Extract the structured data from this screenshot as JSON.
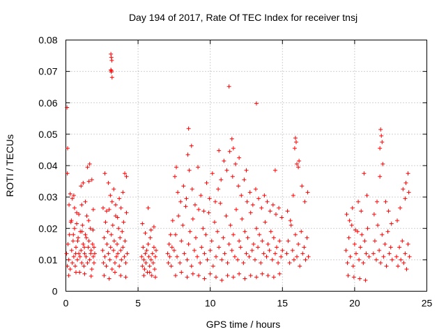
{
  "chart_data": {
    "type": "scatter",
    "title": "Day 194 of 2017, Rate Of TEC Index for receiver tnsj",
    "xlabel": "GPS time / hours",
    "ylabel": "ROTI / TECUs",
    "xlim": [
      0,
      25
    ],
    "ylim": [
      0,
      0.08
    ],
    "xticks": [
      0,
      5,
      10,
      15,
      20,
      25
    ],
    "xtick_labels": [
      "0",
      "5",
      "10",
      "15",
      "20",
      "25"
    ],
    "yticks": [
      0,
      0.01,
      0.02,
      0.03,
      0.04,
      0.05,
      0.06,
      0.07,
      0.08
    ],
    "ytick_labels": [
      "0",
      "0.01",
      "0.02",
      "0.03",
      "0.04",
      "0.05",
      "0.06",
      "0.07",
      "0.08"
    ],
    "grid": true,
    "marker": "+",
    "color": "#ff0000",
    "series": [
      {
        "name": "ROTI",
        "x": [
          0.05,
          0.1,
          0.15,
          0.2,
          0.25,
          0.3,
          0.35,
          0.4,
          0.45,
          0.5,
          0.55,
          0.6,
          0.65,
          0.7,
          0.75,
          0.8,
          0.85,
          0.9,
          0.95,
          1.0,
          1.05,
          1.1,
          1.15,
          1.2,
          1.25,
          1.3,
          1.35,
          1.4,
          1.45,
          1.5,
          1.55,
          1.6,
          1.65,
          1.7,
          1.75,
          1.8,
          1.85,
          1.9,
          1.95,
          2.0,
          0.08,
          0.12,
          0.22,
          0.3,
          0.38,
          0.45,
          0.52,
          0.6,
          0.68,
          0.75,
          0.82,
          0.9,
          0.98,
          1.05,
          1.12,
          1.2,
          1.28,
          1.35,
          1.42,
          1.5,
          1.58,
          1.65,
          1.72,
          1.8,
          1.88,
          1.95,
          0.1,
          0.55,
          1.1,
          1.6,
          1.9,
          0.2,
          0.7,
          1.3,
          1.75,
          2.55,
          2.6,
          2.65,
          2.7,
          2.75,
          2.8,
          2.85,
          2.9,
          2.95,
          3.0,
          3.05,
          3.1,
          3.15,
          3.2,
          3.25,
          3.3,
          3.35,
          3.4,
          3.45,
          3.5,
          3.55,
          3.6,
          3.65,
          3.7,
          3.75,
          3.8,
          3.85,
          3.9,
          3.95,
          4.0,
          4.05,
          4.1,
          4.15,
          4.2,
          4.25,
          2.58,
          2.7,
          2.82,
          2.95,
          3.08,
          3.2,
          3.32,
          3.45,
          3.58,
          3.7,
          3.82,
          3.95,
          4.08,
          4.2,
          2.65,
          3.0,
          3.4,
          3.8,
          4.15,
          3.12,
          3.15,
          3.18,
          3.12,
          3.15,
          3.2,
          3.15,
          5.25,
          5.3,
          5.35,
          5.4,
          5.45,
          5.5,
          5.55,
          5.6,
          5.65,
          5.7,
          5.75,
          5.8,
          5.85,
          5.9,
          5.95,
          6.0,
          6.05,
          6.1,
          6.15,
          6.2,
          6.25,
          5.3,
          5.5,
          5.7,
          5.9,
          6.1,
          5.4,
          5.8,
          6.2,
          7.05,
          7.1,
          7.15,
          7.2,
          7.25,
          7.3,
          7.35,
          7.4,
          7.5,
          7.6,
          7.7,
          7.8,
          7.9,
          8.0,
          8.1,
          8.2,
          8.3,
          8.4,
          8.5,
          8.6,
          8.7,
          8.8,
          8.9,
          9.0,
          9.1,
          9.2,
          9.3,
          9.4,
          9.5,
          9.6,
          9.7,
          9.8,
          9.9,
          10.0,
          10.1,
          10.2,
          10.3,
          10.4,
          10.5,
          10.6,
          10.7,
          10.8,
          10.9,
          11.0,
          11.1,
          11.2,
          11.3,
          11.4,
          11.5,
          11.6,
          11.7,
          11.8,
          11.9,
          12.0,
          12.1,
          12.2,
          12.3,
          12.4,
          12.5,
          12.6,
          12.7,
          12.8,
          12.9,
          13.0,
          13.1,
          13.2,
          13.3,
          13.4,
          13.5,
          13.6,
          13.7,
          13.8,
          13.9,
          14.0,
          14.1,
          14.2,
          14.3,
          14.4,
          14.5,
          14.6,
          14.7,
          14.8,
          14.9,
          15.0,
          7.55,
          7.75,
          7.95,
          8.15,
          8.35,
          8.55,
          8.75,
          8.95,
          9.15,
          9.35,
          9.55,
          9.75,
          9.95,
          10.15,
          10.35,
          10.55,
          10.75,
          10.95,
          11.15,
          11.35,
          11.55,
          11.75,
          11.95,
          12.15,
          12.35,
          12.55,
          12.75,
          12.95,
          13.15,
          13.35,
          13.55,
          13.75,
          13.95,
          14.15,
          14.35,
          14.55,
          14.75,
          14.95,
          7.6,
          8.0,
          8.4,
          8.8,
          9.2,
          9.6,
          10.0,
          10.4,
          10.8,
          11.2,
          11.6,
          12.0,
          12.4,
          12.8,
          13.2,
          13.6,
          14.0,
          14.4,
          14.8,
          7.65,
          8.5,
          8.7,
          11.3,
          11.5,
          11.6,
          10.6,
          13.2,
          8.45,
          12.0,
          12.5,
          14.5,
          15.3,
          15.4,
          15.5,
          15.6,
          15.7,
          15.8,
          15.9,
          16.0,
          16.1,
          16.2,
          16.3,
          16.4,
          16.5,
          16.6,
          16.7,
          16.8,
          15.35,
          15.55,
          15.75,
          15.95,
          16.15,
          16.35,
          16.55,
          16.75,
          15.9,
          16.0,
          16.1,
          15.85,
          19.4,
          19.5,
          19.6,
          19.7,
          19.8,
          19.9,
          20.0,
          20.1,
          20.2,
          20.3,
          20.4,
          20.5,
          20.6,
          20.7,
          20.8,
          20.9,
          21.0,
          19.45,
          19.65,
          19.85,
          20.05,
          20.25,
          20.45,
          20.65,
          20.85,
          19.55,
          19.95,
          20.35,
          20.75,
          21.3,
          21.4,
          21.5,
          21.6,
          21.7,
          21.8,
          21.9,
          22.0,
          22.1,
          22.2,
          22.3,
          22.4,
          22.5,
          22.6,
          21.35,
          21.55,
          21.75,
          21.95,
          22.15,
          22.35,
          22.55,
          21.8,
          21.85,
          21.9,
          21.75,
          22.9,
          23.0,
          23.1,
          23.2,
          23.3,
          23.4,
          23.5,
          23.6,
          23.7,
          23.8,
          22.95,
          23.15,
          23.35,
          23.55,
          23.75,
          23.5,
          23.7
        ],
        "y": [
          0.012,
          0.008,
          0.015,
          0.01,
          0.018,
          0.007,
          0.022,
          0.013,
          0.009,
          0.016,
          0.011,
          0.02,
          0.008,
          0.014,
          0.025,
          0.01,
          0.017,
          0.012,
          0.006,
          0.019,
          0.013,
          0.009,
          0.021,
          0.015,
          0.008,
          0.012,
          0.018,
          0.011,
          0.024,
          0.009,
          0.014,
          0.016,
          0.01,
          0.02,
          0.013,
          0.007,
          0.015,
          0.011,
          0.009,
          0.012,
          0.0585,
          0.0455,
          0.0275,
          0.031,
          0.0225,
          0.0295,
          0.018,
          0.0265,
          0.012,
          0.0215,
          0.016,
          0.0245,
          0.011,
          0.0335,
          0.019,
          0.0345,
          0.014,
          0.0285,
          0.017,
          0.0395,
          0.0225,
          0.0405,
          0.012,
          0.0355,
          0.0195,
          0.014,
          0.0375,
          0.0305,
          0.0275,
          0.035,
          0.026,
          0.005,
          0.006,
          0.0055,
          0.0048,
          0.013,
          0.009,
          0.017,
          0.011,
          0.022,
          0.008,
          0.015,
          0.019,
          0.012,
          0.026,
          0.01,
          0.014,
          0.018,
          0.007,
          0.021,
          0.013,
          0.016,
          0.009,
          0.024,
          0.011,
          0.015,
          0.012,
          0.02,
          0.008,
          0.017,
          0.013,
          0.01,
          0.019,
          0.014,
          0.022,
          0.011,
          0.016,
          0.009,
          0.025,
          0.012,
          0.0265,
          0.0375,
          0.0255,
          0.0345,
          0.0305,
          0.0285,
          0.0325,
          0.0275,
          0.0235,
          0.0295,
          0.0265,
          0.0315,
          0.0375,
          0.0365,
          0.005,
          0.004,
          0.006,
          0.005,
          0.0045,
          0.0755,
          0.0745,
          0.0735,
          0.0705,
          0.0698,
          0.0681,
          0.0702,
          0.011,
          0.008,
          0.014,
          0.01,
          0.007,
          0.012,
          0.009,
          0.013,
          0.006,
          0.015,
          0.011,
          0.008,
          0.017,
          0.01,
          0.005,
          0.012,
          0.009,
          0.014,
          0.007,
          0.011,
          0.013,
          0.0215,
          0.0185,
          0.0265,
          0.0195,
          0.0205,
          0.005,
          0.006,
          0.0045,
          0.012,
          0.009,
          0.015,
          0.011,
          0.018,
          0.008,
          0.014,
          0.0225,
          0.013,
          0.018,
          0.011,
          0.024,
          0.009,
          0.016,
          0.021,
          0.012,
          0.027,
          0.01,
          0.015,
          0.019,
          0.008,
          0.023,
          0.013,
          0.017,
          0.011,
          0.026,
          0.009,
          0.014,
          0.02,
          0.012,
          0.018,
          0.01,
          0.025,
          0.013,
          0.016,
          0.008,
          0.022,
          0.011,
          0.019,
          0.014,
          0.028,
          0.01,
          0.017,
          0.012,
          0.024,
          0.009,
          0.015,
          0.021,
          0.013,
          0.018,
          0.011,
          0.026,
          0.01,
          0.016,
          0.014,
          0.023,
          0.009,
          0.019,
          0.012,
          0.017,
          0.011,
          0.025,
          0.013,
          0.015,
          0.01,
          0.02,
          0.014,
          0.018,
          0.009,
          0.016,
          0.012,
          0.022,
          0.011,
          0.015,
          0.013,
          0.019,
          0.01,
          0.017,
          0.012,
          0.014,
          0.009,
          0.016,
          0.011,
          0.013,
          0.0365,
          0.0315,
          0.0285,
          0.0335,
          0.0295,
          0.0385,
          0.0325,
          0.0275,
          0.0395,
          0.0305,
          0.0255,
          0.0345,
          0.0295,
          0.0375,
          0.0285,
          0.0325,
          0.0355,
          0.0415,
          0.0385,
          0.0445,
          0.0365,
          0.0405,
          0.0335,
          0.0305,
          0.0355,
          0.0285,
          0.0315,
          0.0275,
          0.0325,
          0.0295,
          0.0265,
          0.0305,
          0.0285,
          0.0255,
          0.0275,
          0.0245,
          0.0265,
          0.0235,
          0.005,
          0.006,
          0.0045,
          0.0055,
          0.005,
          0.004,
          0.0055,
          0.0045,
          0.0035,
          0.005,
          0.0045,
          0.0055,
          0.004,
          0.005,
          0.0045,
          0.0055,
          0.005,
          0.0045,
          0.0055,
          0.0395,
          0.0518,
          0.0463,
          0.0652,
          0.0485,
          0.0455,
          0.0448,
          0.0598,
          0.0435,
          0.0425,
          0.0385,
          0.0385,
          0.012,
          0.016,
          0.009,
          0.021,
          0.013,
          0.01,
          0.018,
          0.011,
          0.015,
          0.008,
          0.019,
          0.012,
          0.014,
          0.01,
          0.017,
          0.011,
          0.0255,
          0.0225,
          0.0305,
          0.0475,
          0.0415,
          0.0335,
          0.0285,
          0.0315,
          0.0488,
          0.0405,
          0.0395,
          0.0455,
          0.013,
          0.009,
          0.017,
          0.011,
          0.021,
          0.008,
          0.015,
          0.012,
          0.019,
          0.01,
          0.014,
          0.018,
          0.009,
          0.016,
          0.012,
          0.02,
          0.011,
          0.0245,
          0.0225,
          0.0265,
          0.0195,
          0.0285,
          0.0255,
          0.0375,
          0.0305,
          0.005,
          0.0045,
          0.004,
          0.0035,
          0.012,
          0.016,
          0.01,
          0.021,
          0.013,
          0.009,
          0.018,
          0.011,
          0.015,
          0.008,
          0.019,
          0.012,
          0.014,
          0.01,
          0.0245,
          0.0285,
          0.0365,
          0.0405,
          0.0285,
          0.0255,
          0.0215,
          0.0515,
          0.0495,
          0.0475,
          0.0455,
          0.011,
          0.008,
          0.014,
          0.01,
          0.016,
          0.009,
          0.012,
          0.007,
          0.015,
          0.011,
          0.0225,
          0.0265,
          0.0325,
          0.0345,
          0.0315,
          0.0295,
          0.0375
        ]
      }
    ]
  }
}
